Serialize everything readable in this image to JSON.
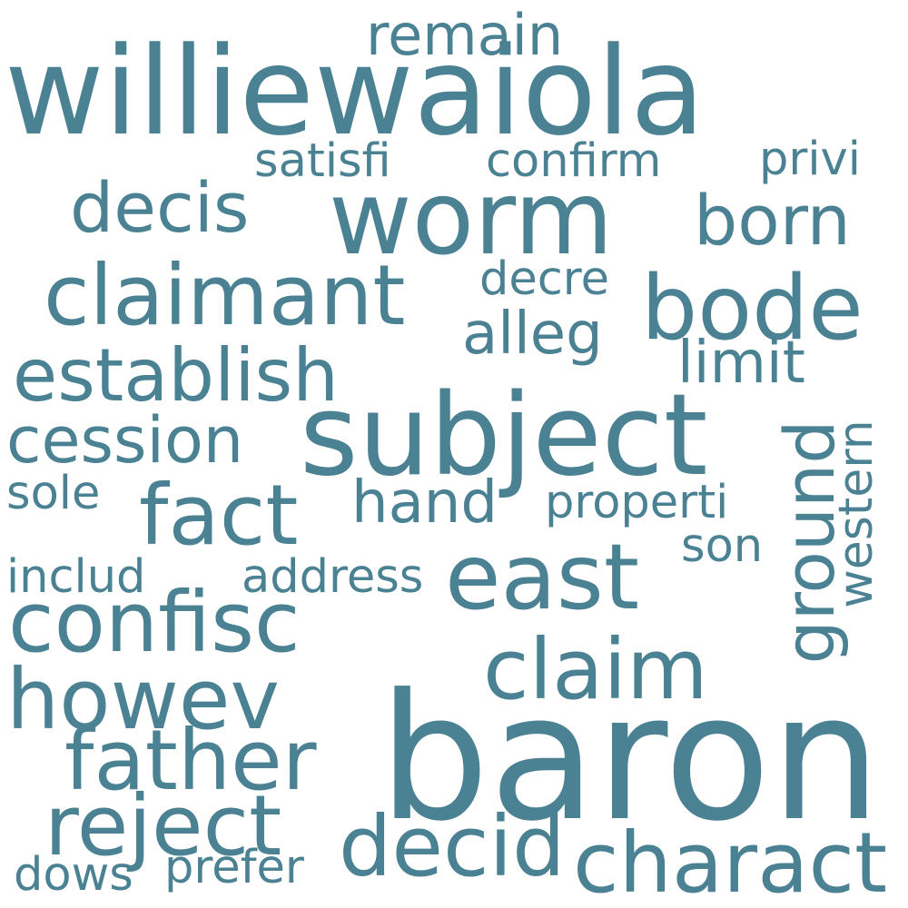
{
  "word_cloud": {
    "text_color": "#4a8193",
    "background_color": "#ffffff",
    "words": [
      "williewaiola",
      "remain",
      "worm",
      "satisfi",
      "confirm",
      "privi",
      "decis",
      "born",
      "claimant",
      "bode",
      "decre",
      "alleg",
      "establish",
      "limit",
      "subject",
      "cession",
      "ground",
      "western",
      "fact",
      "hand",
      "sole",
      "properti",
      "son",
      "includ",
      "address",
      "east",
      "confisc",
      "claim",
      "howev",
      "baron",
      "father",
      "reject",
      "decid",
      "charact",
      "dows",
      "prefer"
    ]
  }
}
